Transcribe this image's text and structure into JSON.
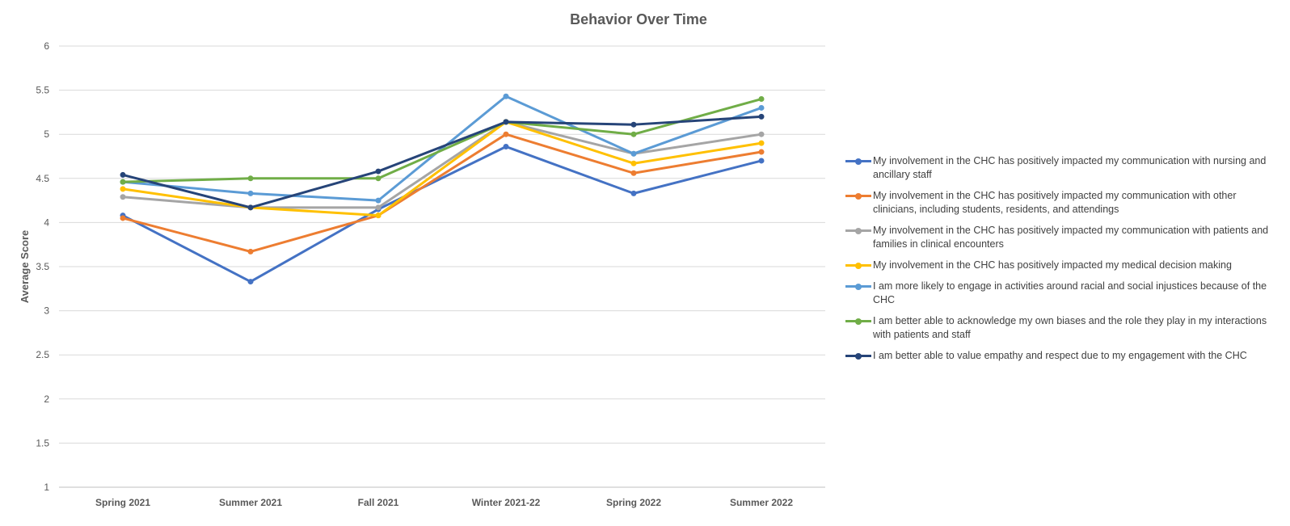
{
  "chart_data": {
    "type": "line",
    "title": "Behavior Over Time",
    "xlabel": "",
    "ylabel": "Average Score",
    "ylim": [
      1,
      6
    ],
    "yticks": [
      "1",
      "1.5",
      "2",
      "2.5",
      "3",
      "3.5",
      "4",
      "4.5",
      "5",
      "5.5",
      "6"
    ],
    "categories": [
      "Spring 2021",
      "Summer 2021",
      "Fall 2021",
      "Winter 2021-22",
      "Spring 2022",
      "Summer 2022"
    ],
    "grid": true,
    "legend_position": "right",
    "series": [
      {
        "name": "My involvement in the CHC has positively impacted my communication with nursing and ancillary staff",
        "color": "#4472C4",
        "values": [
          4.08,
          3.33,
          4.15,
          4.86,
          4.33,
          4.7
        ]
      },
      {
        "name": "My involvement in the CHC has positively impacted my communication with other clinicians, including students, residents, and attendings",
        "color": "#ED7D31",
        "values": [
          4.05,
          3.67,
          4.08,
          5.0,
          4.56,
          4.8
        ]
      },
      {
        "name": "My involvement in the CHC has positively impacted my communication with patients and families in clinical encounters",
        "color": "#A5A5A5",
        "values": [
          4.29,
          4.17,
          4.17,
          5.14,
          4.78,
          5.0
        ]
      },
      {
        "name": "My involvement in the CHC has positively impacted my medical decision making",
        "color": "#FFC000",
        "values": [
          4.38,
          4.17,
          4.08,
          5.14,
          4.67,
          4.9
        ]
      },
      {
        "name": "I am more likely to engage in activities around racial and social injustices because of the CHC",
        "color": "#5B9BD5",
        "values": [
          4.46,
          4.33,
          4.25,
          5.43,
          4.78,
          5.3
        ]
      },
      {
        "name": "I am better able to acknowledge my own biases and the role they play in my interactions with patients and staff",
        "color": "#70AD47",
        "values": [
          4.46,
          4.5,
          4.5,
          5.14,
          5.0,
          5.4
        ]
      },
      {
        "name": "I am better able to value empathy and respect due to my engagement with the CHC",
        "color": "#264478",
        "values": [
          4.54,
          4.17,
          4.58,
          5.14,
          5.11,
          5.2
        ]
      }
    ]
  }
}
